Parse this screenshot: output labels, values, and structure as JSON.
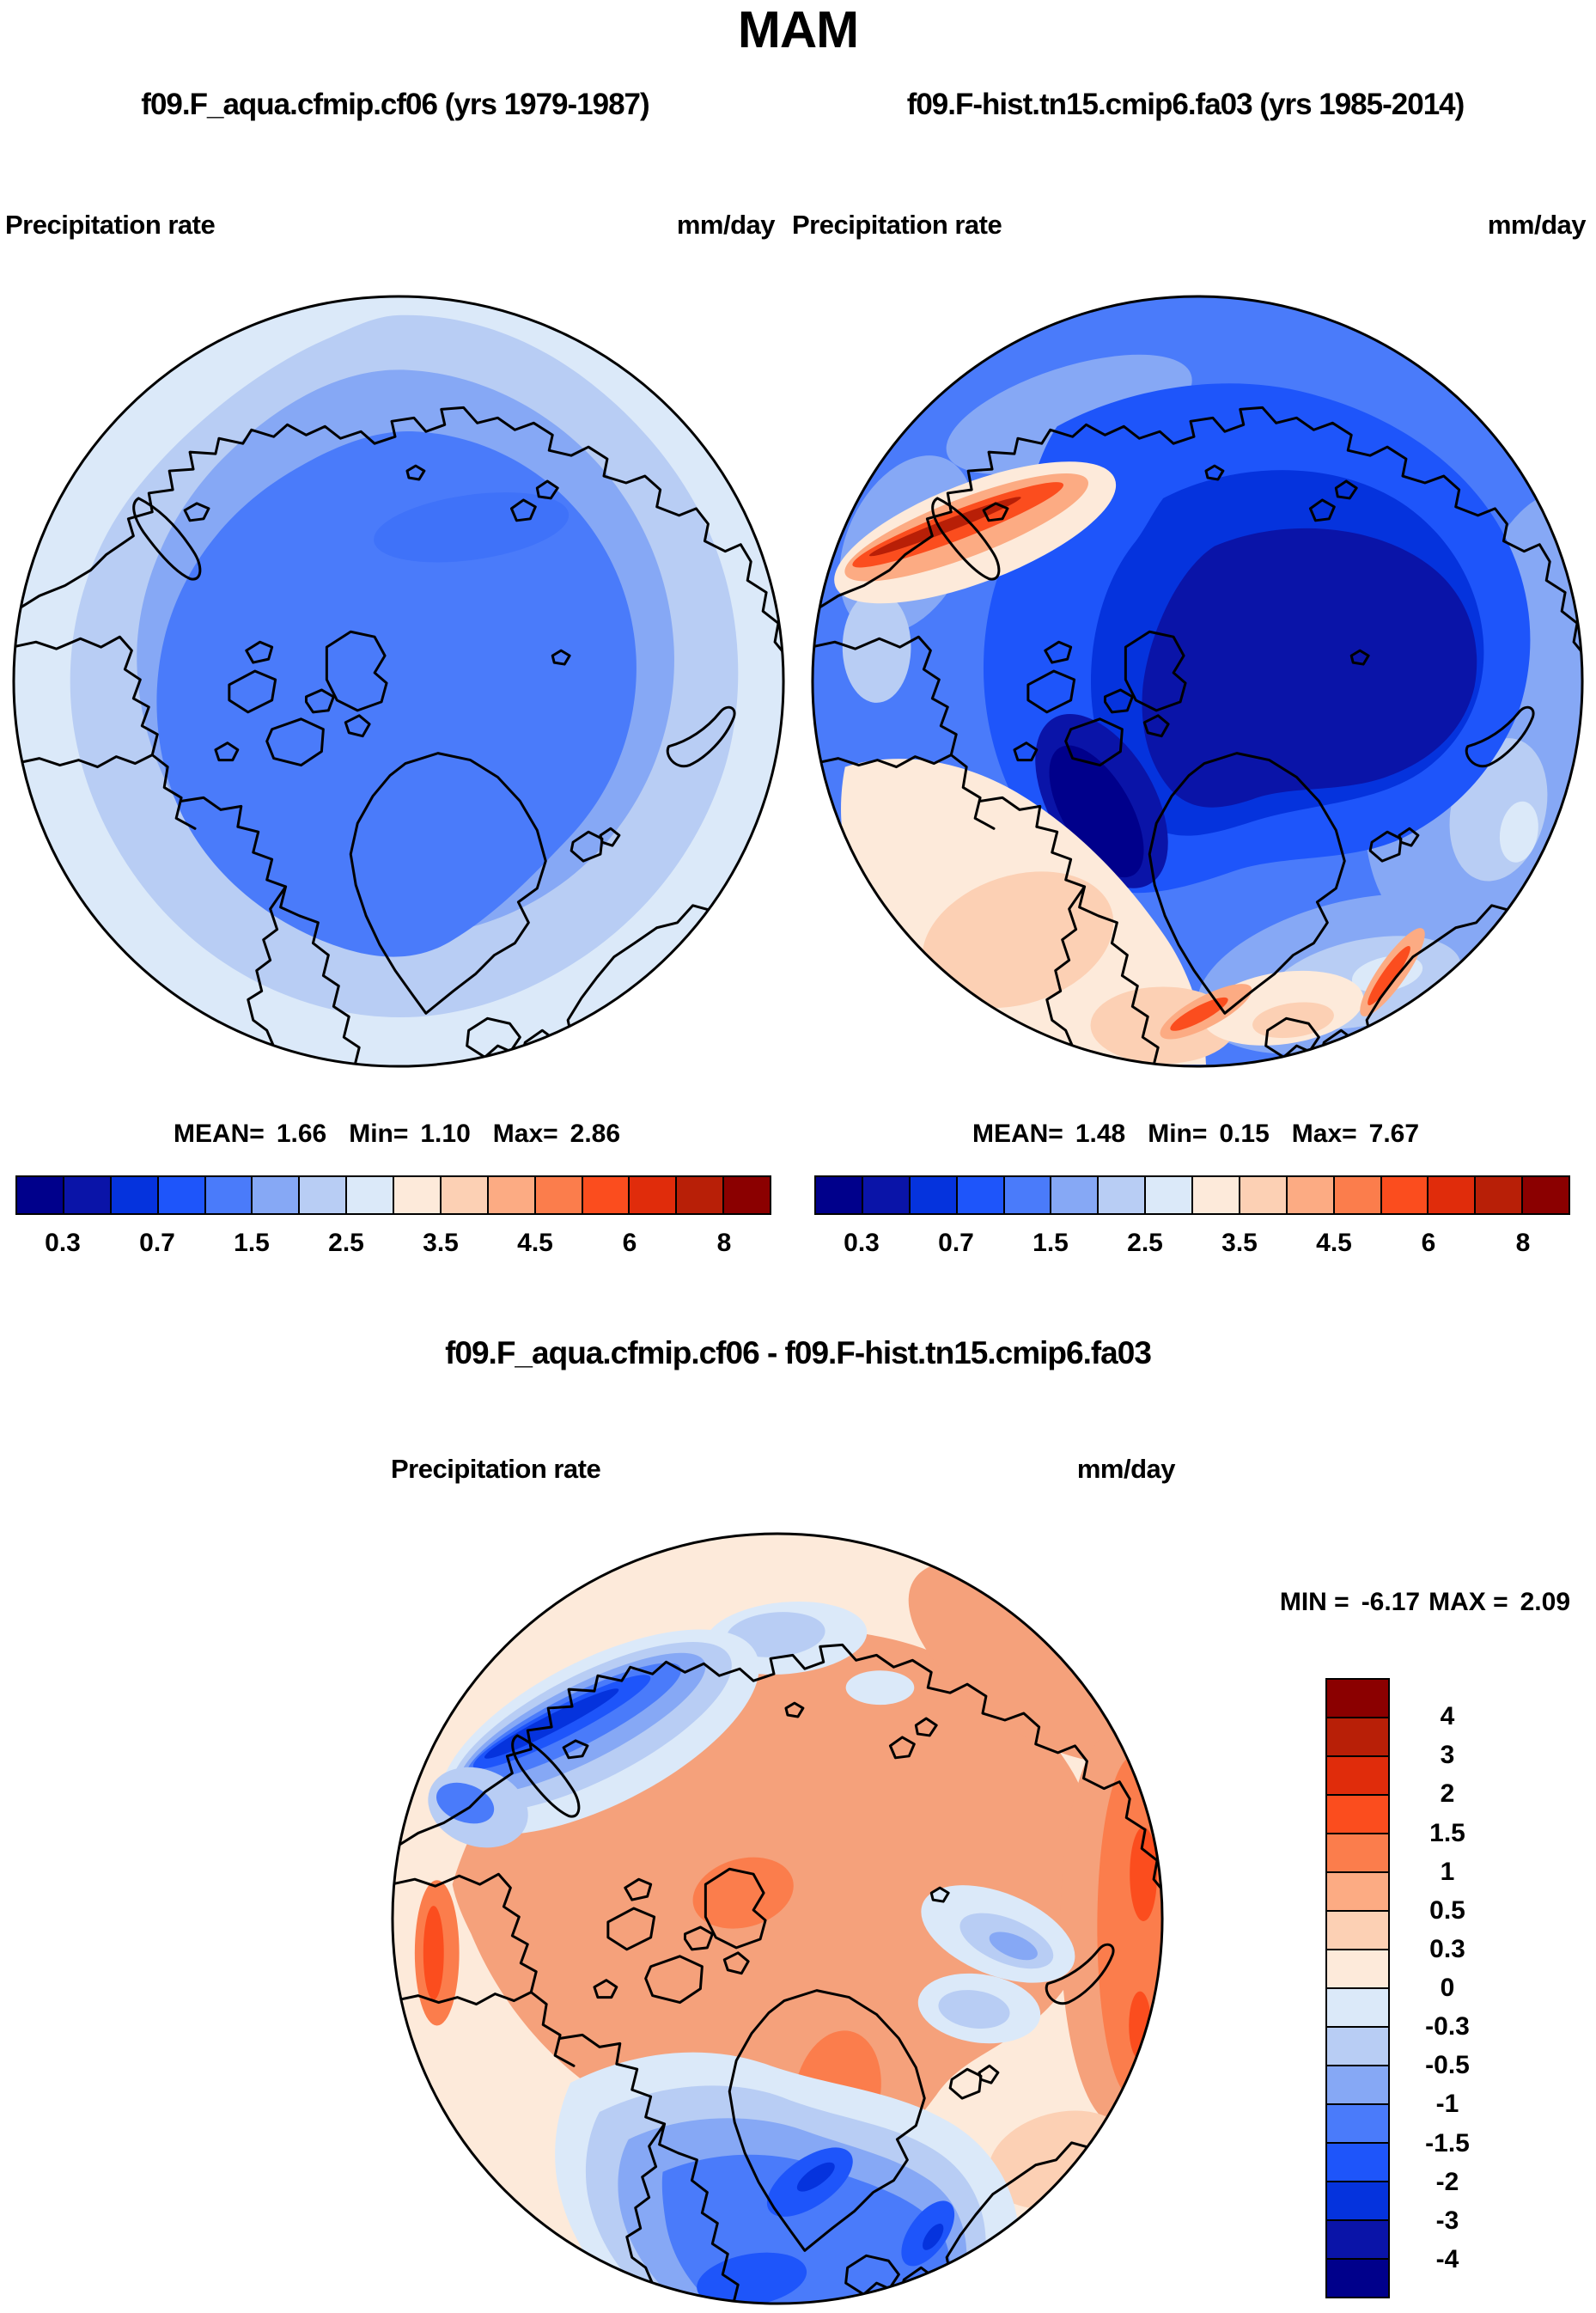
{
  "title": "MAM",
  "panels": {
    "left": {
      "subtitle": "f09.F_aqua.cfmip.cf06 (yrs 1979-1987)",
      "variable": "Precipitation rate",
      "units": "mm/day",
      "stats": {
        "mean_label": "MEAN=",
        "mean": "1.66",
        "min_label": "Min=",
        "min": "1.10",
        "max_label": "Max=",
        "max": "2.86"
      }
    },
    "right": {
      "subtitle": "f09.F-hist.tn15.cmip6.fa03 (yrs 1985-2014)",
      "variable": "Precipitation rate",
      "units": "mm/day",
      "stats": {
        "mean_label": "MEAN=",
        "mean": "1.48",
        "min_label": "Min=",
        "min": "0.15",
        "max_label": "Max=",
        "max": "7.67"
      }
    },
    "diff": {
      "title": "f09.F_aqua.cfmip.cf06 - f09.F-hist.tn15.cmip6.fa03",
      "variable": "Precipitation rate",
      "units": "mm/day",
      "stats": {
        "min_label": "MIN =",
        "min": "-6.17",
        "max_label": "MAX =",
        "max": "2.09"
      }
    }
  },
  "colorbars": {
    "precip": {
      "colors": [
        "#00008b",
        "#0a14a8",
        "#0533dd",
        "#1e55fa",
        "#4a7bfa",
        "#86a8f5",
        "#b8cdf4",
        "#dbe9f9",
        "#fdeada",
        "#fcd0b4",
        "#fcab83",
        "#fb7d4c",
        "#fb4d1e",
        "#e02c0b",
        "#b81f07",
        "#8b0000"
      ],
      "labels": [
        "0.3",
        "0.7",
        "1.5",
        "2.5",
        "3.5",
        "4.5",
        "6",
        "8"
      ]
    },
    "diff": {
      "colors": [
        "#8b0000",
        "#b81f07",
        "#e02c0b",
        "#fb4d1e",
        "#fb7d4c",
        "#fcab83",
        "#fcd0b4",
        "#fdeada",
        "#dbe9f9",
        "#b8cdf4",
        "#86a8f5",
        "#4a7bfa",
        "#1e55fa",
        "#0533dd",
        "#0a14a8",
        "#00008b"
      ],
      "labels": [
        "4",
        "3",
        "2",
        "1.5",
        "1",
        "0.5",
        "0.3",
        "0",
        "-0.3",
        "-0.5",
        "-1",
        "-1.5",
        "-2",
        "-3",
        "-4"
      ]
    }
  },
  "chart_data": [
    {
      "type": "heatmap",
      "subtype": "filled-contour-map",
      "projection": "north-polar-stereographic",
      "title": "f09.F_aqua.cfmip.cf06 (yrs 1979-1987)",
      "variable": "Precipitation rate",
      "units": "mm/day",
      "stats": {
        "mean": 1.66,
        "min": 1.1,
        "max": 2.86
      },
      "labeled_levels": [
        0.3,
        0.7,
        1.5,
        2.5,
        3.5,
        4.5,
        6,
        8
      ],
      "palette": [
        "#00008b",
        "#0a14a8",
        "#0533dd",
        "#1e55fa",
        "#4a7bfa",
        "#86a8f5",
        "#b8cdf4",
        "#dbe9f9",
        "#fdeada",
        "#fcd0b4",
        "#fcab83",
        "#fb7d4c",
        "#fb4d1e",
        "#e02c0b",
        "#b81f07",
        "#8b0000"
      ],
      "legend_position": "bottom",
      "notes": "Nearly zonally uniform blue field ~1-2.5 mm/day, wetter (mid blue) over central Arctic, lighter blue toward map edge"
    },
    {
      "type": "heatmap",
      "subtype": "filled-contour-map",
      "projection": "north-polar-stereographic",
      "title": "f09.F-hist.tn15.cmip6.fa03 (yrs 1985-2014)",
      "variable": "Precipitation rate",
      "units": "mm/day",
      "stats": {
        "mean": 1.48,
        "min": 0.15,
        "max": 7.67
      },
      "labeled_levels": [
        0.3,
        0.7,
        1.5,
        2.5,
        3.5,
        4.5,
        6,
        8
      ],
      "palette": [
        "#00008b",
        "#0a14a8",
        "#0533dd",
        "#1e55fa",
        "#4a7bfa",
        "#86a8f5",
        "#b8cdf4",
        "#dbe9f9",
        "#fdeada",
        "#fcd0b4",
        "#fcab83",
        "#fb7d4c",
        "#fb4d1e",
        "#e02c0b",
        "#b81f07",
        "#8b0000"
      ],
      "legend_position": "bottom",
      "notes": "Very dry (dark navy) central Arctic basin and Baffin Bay; orange/red storm-track maxima along NW Pacific and SE Greenland/Norway coasts; 3-5 mm/day peach in subpolar oceans"
    },
    {
      "type": "heatmap",
      "subtype": "filled-contour-difference-map",
      "projection": "north-polar-stereographic",
      "title": "f09.F_aqua.cfmip.cf06 - f09.F-hist.tn15.cmip6.fa03",
      "variable": "Precipitation rate",
      "units": "mm/day",
      "stats": {
        "min": -6.17,
        "max": 2.09
      },
      "labeled_levels": [
        -4,
        -3,
        -2,
        -1.5,
        -1,
        -0.5,
        -0.3,
        0,
        0.3,
        0.5,
        1,
        1.5,
        2,
        3,
        4
      ],
      "palette_top_to_bottom": [
        "#8b0000",
        "#b81f07",
        "#e02c0b",
        "#fb4d1e",
        "#fb7d4c",
        "#fcab83",
        "#fcd0b4",
        "#fdeada",
        "#dbe9f9",
        "#b8cdf4",
        "#86a8f5",
        "#4a7bfa",
        "#1e55fa",
        "#0533dd",
        "#0a14a8",
        "#00008b"
      ],
      "legend_position": "right",
      "notes": "Positive (salmon ~+0.5 to +1) over central Arctic and Canada; strong negative (blue, to -4) over NW Pacific storm track and North Atlantic south of Greenland/Norway; positive band along eastern rim"
    }
  ]
}
